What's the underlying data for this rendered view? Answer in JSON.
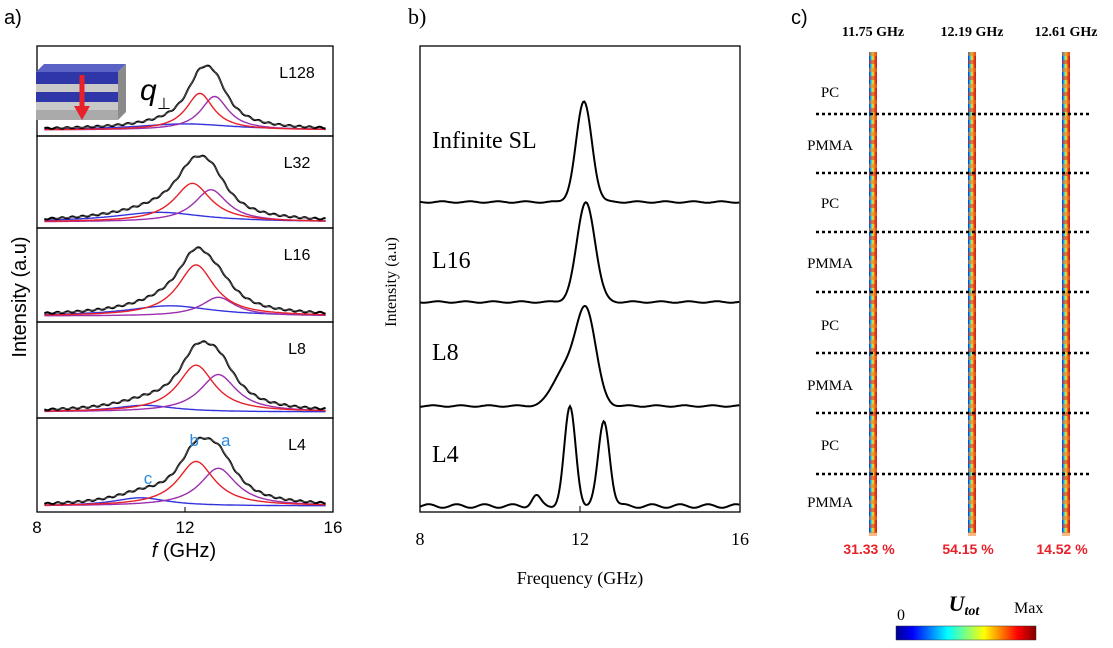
{
  "panel_labels": [
    "a)",
    "b)",
    "c)"
  ],
  "chart_data": [
    {
      "type": "line",
      "panel": "a)",
      "xlabel_italic": "f",
      "xlabel_rest": " (GHz)",
      "ylabel": "Intensity (a.u)",
      "xlim": [
        8,
        16
      ],
      "xticks": [
        "8",
        "12",
        "16"
      ],
      "inset_symbol": "q",
      "inset_subscript": "⊥",
      "peak_labels": {
        "a": "a",
        "b": "b",
        "c": "c"
      },
      "series_colors": {
        "measured": "#000000",
        "total_fit": "#555555",
        "peak_a": "#9b2fae",
        "peak_b": "#e8202a",
        "peak_c": "#3333dd"
      },
      "subplots": [
        {
          "label": "L128",
          "peaks": [
            {
              "id": "a",
              "center": 12.8,
              "width": 0.45,
              "amp": 0.55
            },
            {
              "id": "b",
              "center": 12.4,
              "width": 0.45,
              "amp": 0.6
            },
            {
              "id": "c",
              "center": 12.0,
              "width": 1.6,
              "amp": 0.1
            }
          ]
        },
        {
          "label": "L32",
          "peaks": [
            {
              "id": "a",
              "center": 12.7,
              "width": 0.55,
              "amp": 0.6
            },
            {
              "id": "b",
              "center": 12.2,
              "width": 0.6,
              "amp": 0.72
            },
            {
              "id": "c",
              "center": 11.3,
              "width": 1.5,
              "amp": 0.18
            }
          ]
        },
        {
          "label": "L16",
          "peaks": [
            {
              "id": "a",
              "center": 12.9,
              "width": 0.55,
              "amp": 0.22
            },
            {
              "id": "b",
              "center": 12.3,
              "width": 0.6,
              "amp": 0.6
            },
            {
              "id": "c",
              "center": 11.6,
              "width": 1.4,
              "amp": 0.12
            }
          ]
        },
        {
          "label": "L8",
          "peaks": [
            {
              "id": "a",
              "center": 12.9,
              "width": 0.6,
              "amp": 0.56
            },
            {
              "id": "b",
              "center": 12.3,
              "width": 0.6,
              "amp": 0.7
            },
            {
              "id": "c",
              "center": 10.9,
              "width": 1.0,
              "amp": 0.1
            }
          ]
        },
        {
          "label": "L4",
          "peaks": [
            {
              "id": "a",
              "center": 12.9,
              "width": 0.6,
              "amp": 0.55
            },
            {
              "id": "b",
              "center": 12.3,
              "width": 0.6,
              "amp": 0.65
            },
            {
              "id": "c",
              "center": 10.8,
              "width": 0.9,
              "amp": 0.12
            }
          ]
        }
      ]
    },
    {
      "type": "line",
      "panel": "b)",
      "xlabel": "Frequency (GHz)",
      "ylabel": "Intensity (a.u)",
      "xlim": [
        8,
        16
      ],
      "xticks": [
        "8",
        "12",
        "16"
      ],
      "series": [
        {
          "name": "Infinite SL",
          "peaks": [
            {
              "center": 12.1,
              "width": 0.28,
              "amp": 1.0
            }
          ]
        },
        {
          "name": "L16",
          "peaks": [
            {
              "center": 12.15,
              "width": 0.32,
              "amp": 1.0
            }
          ]
        },
        {
          "name": "L8",
          "peaks": [
            {
              "center": 12.15,
              "width": 0.35,
              "amp": 0.95
            },
            {
              "center": 11.6,
              "width": 0.4,
              "amp": 0.35
            }
          ]
        },
        {
          "name": "L4",
          "peaks": [
            {
              "center": 11.75,
              "width": 0.2,
              "amp": 0.98
            },
            {
              "center": 12.6,
              "width": 0.2,
              "amp": 0.85
            },
            {
              "center": 10.9,
              "width": 0.15,
              "amp": 0.1
            }
          ]
        }
      ]
    },
    {
      "type": "heatmap",
      "panel": "c)",
      "columns": [
        {
          "frequency": "11.75 GHz",
          "percent": "31.33 %"
        },
        {
          "frequency": "12.19 GHz",
          "percent": "54.15 %"
        },
        {
          "frequency": "12.61 GHz",
          "percent": "14.52 %"
        }
      ],
      "layers": [
        "PC",
        "PMMA",
        "PC",
        "PMMA",
        "PC",
        "PMMA",
        "PC",
        "PMMA"
      ],
      "colorbar": {
        "title": "U",
        "title_subscript": "tot",
        "min_label": "0",
        "max_label": "Max"
      },
      "percent_color": "#e8202a"
    }
  ]
}
